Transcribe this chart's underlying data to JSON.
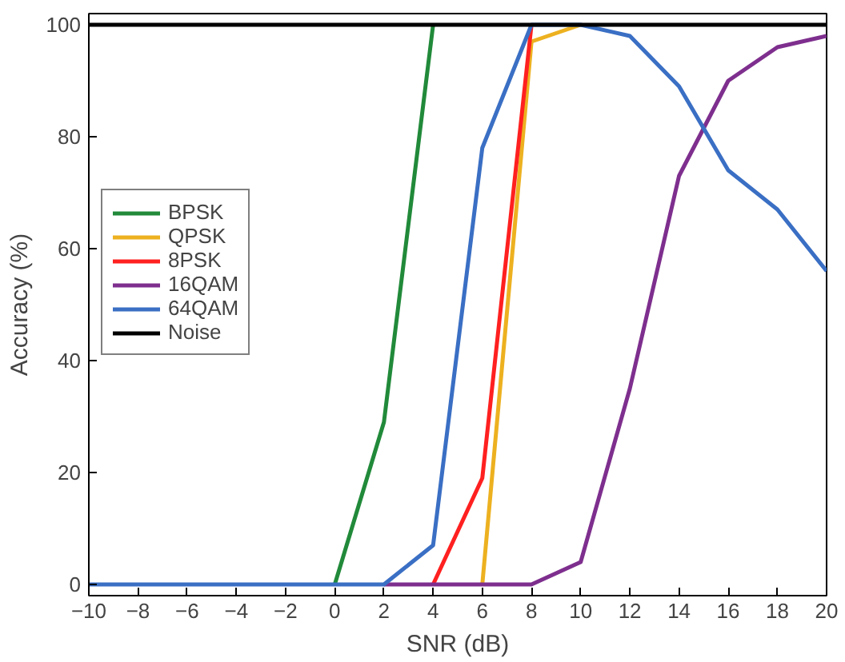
{
  "chart_data": {
    "type": "line",
    "xlabel": "SNR (dB)",
    "ylabel": "Accuracy (%)",
    "x": [
      -10,
      -8,
      -6,
      -4,
      -2,
      0,
      2,
      4,
      6,
      8,
      10,
      12,
      14,
      16,
      18,
      20
    ],
    "xlim": [
      -10,
      20
    ],
    "xticks": [
      -10,
      -8,
      -6,
      -4,
      -2,
      0,
      2,
      4,
      6,
      8,
      10,
      12,
      14,
      16,
      18,
      20
    ],
    "ylim": [
      -2,
      102
    ],
    "yticks": [
      0,
      20,
      40,
      60,
      80,
      100
    ],
    "grid": false,
    "legend": "left",
    "marker": "none",
    "line_style": "solid",
    "series": [
      {
        "name": "BPSK",
        "color": "#218a3a",
        "values": [
          null,
          null,
          null,
          null,
          null,
          0,
          29,
          100,
          null,
          null,
          null,
          null,
          null,
          null,
          null,
          null
        ]
      },
      {
        "name": "QPSK",
        "color": "#edb120",
        "values": [
          null,
          null,
          null,
          null,
          null,
          null,
          null,
          null,
          0,
          97,
          100,
          null,
          null,
          null,
          null,
          null
        ]
      },
      {
        "name": "8PSK",
        "color": "#ff2020",
        "values": [
          null,
          null,
          null,
          null,
          null,
          null,
          null,
          0,
          19,
          100,
          null,
          null,
          null,
          null,
          null,
          null
        ]
      },
      {
        "name": "16QAM",
        "color": "#7e2f8e",
        "values": [
          null,
          null,
          null,
          null,
          null,
          null,
          0,
          0,
          0,
          0,
          4,
          35,
          73,
          90,
          96,
          98
        ]
      },
      {
        "name": "64QAM",
        "color": "#3a6fc4",
        "values": [
          0,
          0,
          0,
          0,
          0,
          0,
          0,
          7,
          78,
          100,
          100,
          98,
          89,
          74,
          67,
          56
        ]
      },
      {
        "name": "Noise",
        "color": "#000000",
        "values": [
          100,
          100,
          100,
          100,
          100,
          100,
          100,
          100,
          100,
          100,
          100,
          100,
          100,
          100,
          100,
          100
        ]
      }
    ]
  }
}
